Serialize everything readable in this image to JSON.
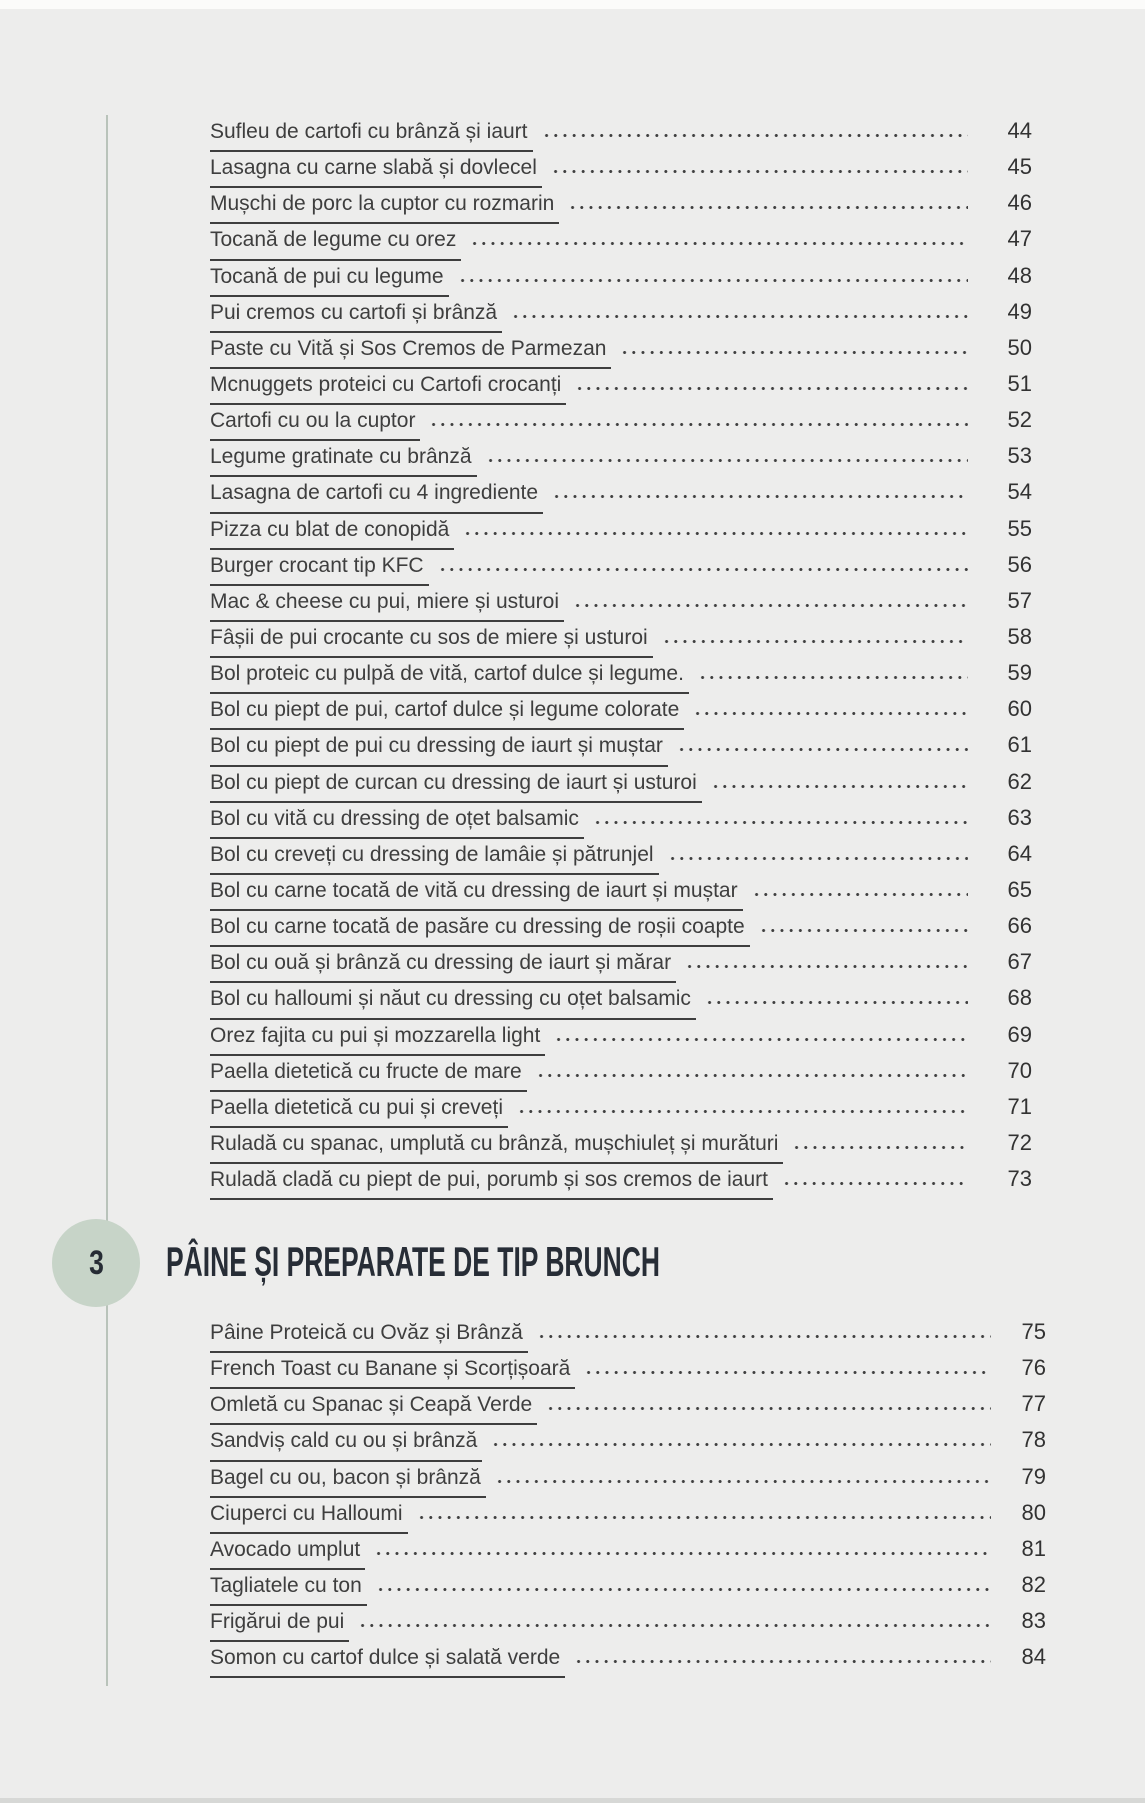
{
  "colors": {
    "page_bg": "#ededec",
    "accent_line": "#b9c3ba",
    "badge_bg": "#c7d4c8",
    "heading_text": "#272d36",
    "body_text": "#3e3e3e"
  },
  "toc_part1": {
    "entries": [
      {
        "title": "Sufleu de cartofi cu brânză și iaurt",
        "page": "44"
      },
      {
        "title": "Lasagna cu carne slabă și dovlecel",
        "page": "45"
      },
      {
        "title": "Mușchi de porc la cuptor cu rozmarin",
        "page": "46"
      },
      {
        "title": "Tocană de legume cu orez",
        "page": "47"
      },
      {
        "title": "Tocană de pui cu legume",
        "page": "48"
      },
      {
        "title": "Pui cremos cu cartofi și brânză",
        "page": "49"
      },
      {
        "title": "Paste cu Vită și Sos Cremos de Parmezan",
        "page": "50"
      },
      {
        "title": "Mcnuggets proteici cu Cartofi crocanți",
        "page": "51"
      },
      {
        "title": "Cartofi cu ou la cuptor",
        "page": "52"
      },
      {
        "title": "Legume gratinate cu brânză",
        "page": "53"
      },
      {
        "title": "Lasagna de cartofi cu 4 ingrediente",
        "page": "54"
      },
      {
        "title": "Pizza cu blat de conopidă",
        "page": "55"
      },
      {
        "title": "Burger crocant tip KFC",
        "page": "56"
      },
      {
        "title": "Mac & cheese cu pui, miere și usturoi",
        "page": "57"
      },
      {
        "title": "Fâșii de pui crocante cu sos de miere și usturoi",
        "page": "58"
      },
      {
        "title": "Bol proteic cu pulpă de vită, cartof dulce și legume.",
        "page": "59"
      },
      {
        "title": "Bol cu piept de pui, cartof dulce și legume colorate",
        "page": "60"
      },
      {
        "title": "Bol cu piept de pui cu dressing de iaurt și muștar",
        "page": "61"
      },
      {
        "title": "Bol cu piept de curcan cu dressing de iaurt și usturoi",
        "page": "62"
      },
      {
        "title": "Bol cu vită cu dressing de oțet balsamic",
        "page": "63"
      },
      {
        "title": "Bol cu creveți cu dressing de lamâie și pătrunjel",
        "page": "64"
      },
      {
        "title": "Bol cu carne tocată de vită cu dressing de iaurt și muștar",
        "page": "65"
      },
      {
        "title": "Bol cu carne tocată de pasăre cu dressing de roșii coapte",
        "page": "66"
      },
      {
        "title": "Bol cu ouă și brânză cu dressing de iaurt și mărar",
        "page": "67"
      },
      {
        "title": "Bol cu halloumi și năut cu dressing cu oțet balsamic",
        "page": "68"
      },
      {
        "title": "Orez fajita cu pui și mozzarella light",
        "page": "69"
      },
      {
        "title": "Paella dietetică cu fructe de mare",
        "page": "70"
      },
      {
        "title": "Paella dietetică cu pui și creveți",
        "page": "71"
      },
      {
        "title": "Ruladă cu spanac, umplută cu brânză, mușchiuleț și murături",
        "page": "72"
      },
      {
        "title": "Ruladă cladă cu piept de pui, porumb și sos cremos de iaurt",
        "page": "73"
      }
    ]
  },
  "section_brunch": {
    "number": "3",
    "title": "PÂINE ȘI PREPARATE DE TIP BRUNCH",
    "entries": [
      {
        "title": "Pâine Proteică cu Ovăz și Brânză",
        "page": "75"
      },
      {
        "title": "French Toast cu Banane și Scorțișoară",
        "page": "76"
      },
      {
        "title": "Omletă cu Spanac și Ceapă Verde",
        "page": "77"
      },
      {
        "title": "Sandviș cald cu ou și brânză",
        "page": "78"
      },
      {
        "title": "Bagel cu ou, bacon și brânză",
        "page": "79"
      },
      {
        "title": "Ciuperci cu Halloumi",
        "page": "80"
      },
      {
        "title": "Avocado umplut",
        "page": "81"
      },
      {
        "title": "Tagliatele cu ton",
        "page": "82"
      },
      {
        "title": "Frigărui de pui",
        "page": "83"
      },
      {
        "title": "Somon cu cartof dulce și salată verde",
        "page": "84"
      }
    ]
  }
}
